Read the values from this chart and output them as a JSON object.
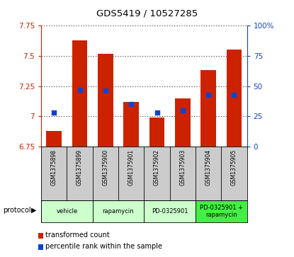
{
  "title": "GDS5419 / 10527285",
  "samples": [
    "GSM1375898",
    "GSM1375899",
    "GSM1375900",
    "GSM1375901",
    "GSM1375902",
    "GSM1375903",
    "GSM1375904",
    "GSM1375905"
  ],
  "bar_values": [
    6.88,
    7.63,
    7.52,
    7.12,
    6.99,
    7.15,
    7.38,
    7.55
  ],
  "bar_base": 6.75,
  "percentile_values": [
    28,
    47,
    46,
    35,
    28,
    30,
    43,
    43
  ],
  "protocol_colors": [
    "#ccffcc",
    "#ccffcc",
    "#ccffcc",
    "#44ee44"
  ],
  "protocol_labels": [
    "vehicle",
    "rapamycin",
    "PD-0325901",
    "PD-0325901 +\nrapamycin"
  ],
  "protocol_sample_ranges": [
    [
      0,
      1
    ],
    [
      2,
      3
    ],
    [
      4,
      5
    ],
    [
      6,
      7
    ]
  ],
  "ylim": [
    6.75,
    7.75
  ],
  "yticks": [
    6.75,
    7.0,
    7.25,
    7.5,
    7.75
  ],
  "ytick_labels": [
    "6.75",
    "7",
    "7.25",
    "7.5",
    "7.75"
  ],
  "right_yticks": [
    0,
    25,
    50,
    75,
    100
  ],
  "right_ytick_labels": [
    "0",
    "25",
    "50",
    "75",
    "100%"
  ],
  "bar_color": "#cc2200",
  "dot_color": "#1144cc",
  "grid_color": "#000000",
  "label_area_bg": "#cccccc",
  "legend_bar": "transformed count",
  "legend_dot": "percentile rank within the sample"
}
